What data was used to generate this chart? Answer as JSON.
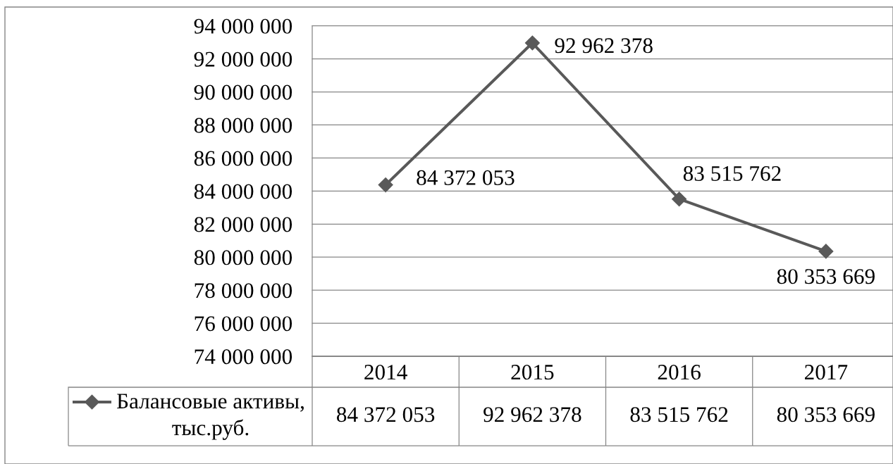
{
  "chart_data": {
    "type": "line",
    "categories": [
      "2014",
      "2015",
      "2016",
      "2017"
    ],
    "series": [
      {
        "name": "Балансовые активы, тыс.руб.",
        "color": "#595959",
        "values": [
          84372053,
          92962378,
          83515762,
          80353669
        ],
        "value_labels": [
          "84 372 053",
          "92 962 378",
          "83 515 762",
          "80 353 669"
        ]
      }
    ],
    "ylim": [
      74000000,
      94000000
    ],
    "yticks": [
      {
        "value": 74000000,
        "label": "74 000 000"
      },
      {
        "value": 76000000,
        "label": "76 000 000"
      },
      {
        "value": 78000000,
        "label": "78 000 000"
      },
      {
        "value": 80000000,
        "label": "80 000 000"
      },
      {
        "value": 82000000,
        "label": "82 000 000"
      },
      {
        "value": 84000000,
        "label": "84 000 000"
      },
      {
        "value": 86000000,
        "label": "86 000 000"
      },
      {
        "value": 88000000,
        "label": "88 000 000"
      },
      {
        "value": 90000000,
        "label": "90 000 000"
      },
      {
        "value": 92000000,
        "label": "92 000 000"
      },
      {
        "value": 94000000,
        "label": "94 000 000"
      }
    ],
    "grid": "y",
    "legend": "bottom left",
    "marker": "diamond",
    "line_style": "solid"
  }
}
